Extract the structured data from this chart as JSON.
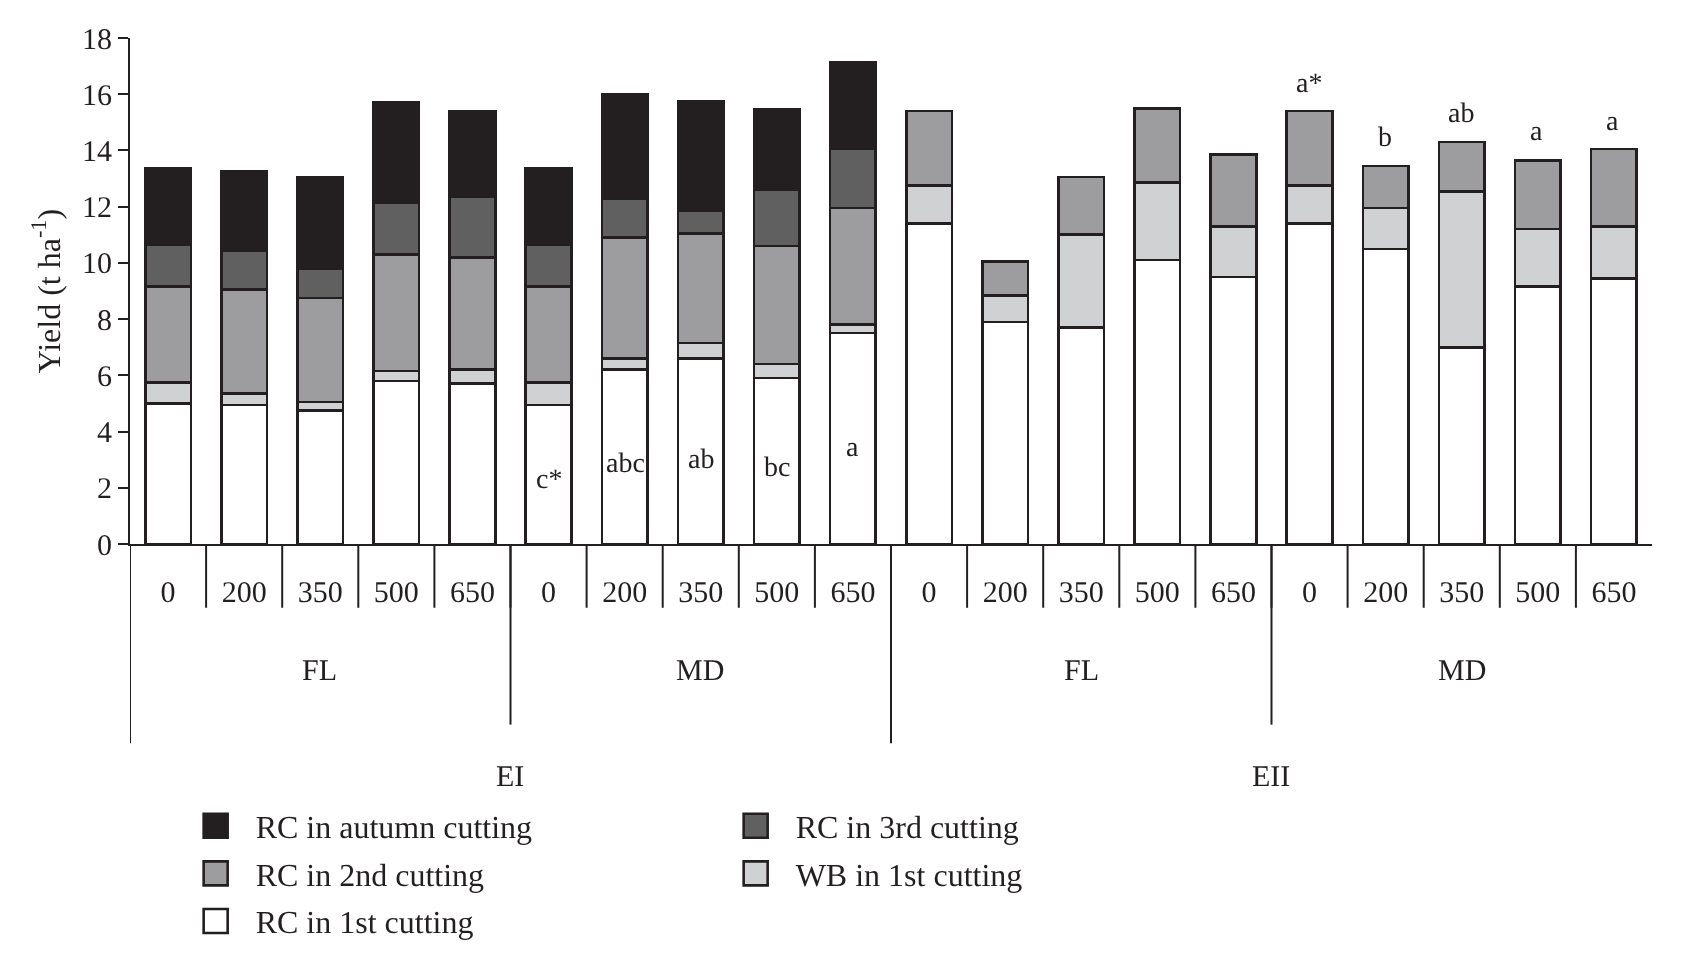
{
  "chart_data": {
    "type": "bar",
    "stacked": true,
    "ylabel": "Yield (t ha$^{-1}$)",
    "categories": [
      "0",
      "200",
      "350",
      "500",
      "650",
      "0",
      "200",
      "350",
      "500",
      "650",
      "0",
      "200",
      "350",
      "500",
      "650",
      "0",
      "200",
      "350",
      "500",
      "650"
    ],
    "annotations": [
      "FL",
      "MD",
      "FL",
      "MD",
      "EI",
      "EII"
    ],
    "series": [
      {
        "name": "RC in 1st cutting",
        "color": "#ffffff",
        "values": [
          5.0,
          4.95,
          4.75,
          5.8,
          5.7,
          4.95,
          6.2,
          6.6,
          5.9,
          7.5,
          11.4,
          7.9,
          7.7,
          10.1,
          9.5,
          11.4,
          10.5,
          7.0,
          9.15,
          9.45
        ],
        "value_labels": [
          null,
          null,
          null,
          null,
          null,
          "c*",
          "abc",
          "ab",
          "bc",
          "a",
          null,
          null,
          null,
          null,
          null,
          null,
          null,
          null,
          null,
          null
        ]
      },
      {
        "name": "WB in 1st cutting",
        "color": "#d0d1d2",
        "values": [
          0.75,
          0.4,
          0.3,
          0.35,
          0.5,
          0.8,
          0.4,
          0.55,
          0.5,
          0.3,
          1.35,
          0.95,
          3.3,
          2.75,
          1.8,
          1.35,
          1.45,
          5.55,
          2.05,
          1.85
        ]
      },
      {
        "name": "RC in 2nd cutting",
        "color": "#9d9d9f",
        "values": [
          3.4,
          3.7,
          3.7,
          4.15,
          4.0,
          3.4,
          4.3,
          3.9,
          4.2,
          4.15,
          2.65,
          1.2,
          2.05,
          2.65,
          2.55,
          2.65,
          1.5,
          1.75,
          2.45,
          2.75
        ],
        "value_labels": [
          null,
          null,
          null,
          null,
          null,
          null,
          null,
          null,
          null,
          null,
          null,
          null,
          null,
          null,
          null,
          "a*",
          "b",
          "ab",
          "a",
          "a"
        ]
      },
      {
        "name": "RC in 3rd cutting",
        "color": "#606060",
        "values": [
          1.5,
          1.4,
          1.05,
          1.85,
          2.15,
          1.5,
          1.4,
          0.8,
          2.0,
          2.1,
          null,
          null,
          null,
          null,
          null,
          null,
          null,
          null,
          null,
          null
        ]
      },
      {
        "name": "RC in autumn cutting",
        "color": "#231f20",
        "values": [
          2.7,
          2.8,
          3.25,
          3.55,
          3.05,
          2.7,
          3.7,
          3.9,
          2.85,
          3.1,
          null,
          null,
          null,
          null,
          null,
          null,
          null,
          null,
          null,
          null
        ]
      }
    ],
    "ylim": [
      0,
      18
    ],
    "yticks": [
      0,
      2,
      4,
      6,
      8,
      10,
      12,
      14,
      16,
      18
    ],
    "legend": "bottom"
  }
}
